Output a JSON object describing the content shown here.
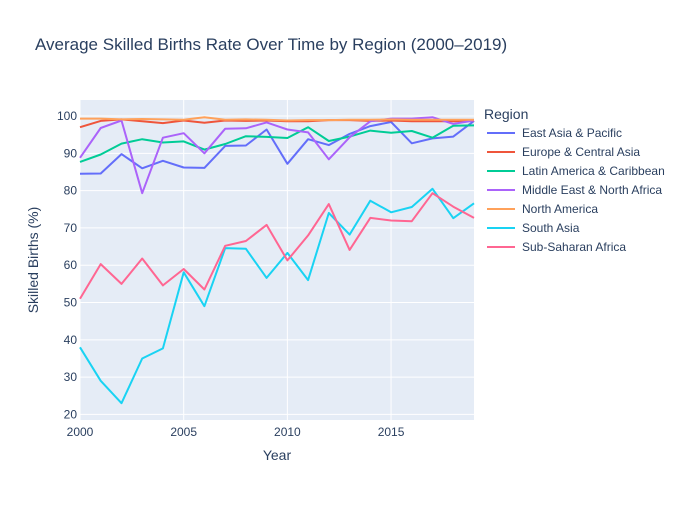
{
  "chart_data": {
    "type": "line",
    "title": "Average Skilled Births Rate Over Time by Region (2000–2019)",
    "xlabel": "Year",
    "ylabel": "Skilled Births (%)",
    "x": [
      2000,
      2001,
      2002,
      2003,
      2004,
      2005,
      2006,
      2007,
      2008,
      2009,
      2010,
      2011,
      2012,
      2013,
      2014,
      2015,
      2016,
      2017,
      2018,
      2019
    ],
    "xlim": [
      2000,
      2019
    ],
    "ylim": [
      18.5,
      104.3
    ],
    "xticks": [
      2000,
      2005,
      2010,
      2015
    ],
    "yticks": [
      20,
      30,
      40,
      50,
      60,
      70,
      80,
      90,
      100
    ],
    "grid": true,
    "legend": {
      "title": "Region",
      "placement": "right"
    },
    "colors": {
      "plot_background": "#e5ecf6",
      "grid": "#ffffff",
      "text": "#2a3f5f"
    },
    "series": [
      {
        "name": "East Asia & Pacific",
        "color": "#636efa",
        "values": [
          84.5,
          84.6,
          89.8,
          86.0,
          88.0,
          86.2,
          86.1,
          92.0,
          92.1,
          96.4,
          87.2,
          93.8,
          92.2,
          95.2,
          97.3,
          98.4,
          92.7,
          94.0,
          94.5,
          98.7
        ]
      },
      {
        "name": "Europe & Central Asia",
        "color": "#ef553b",
        "values": [
          97.0,
          98.7,
          99.1,
          98.6,
          98.1,
          98.8,
          98.2,
          98.8,
          98.7,
          98.8,
          98.6,
          98.6,
          98.9,
          98.9,
          98.7,
          98.8,
          98.6,
          98.6,
          98.6,
          98.7
        ]
      },
      {
        "name": "Latin America & Caribbean",
        "color": "#00cc96",
        "values": [
          87.7,
          89.7,
          92.6,
          93.8,
          92.9,
          93.2,
          91.0,
          92.5,
          94.6,
          94.4,
          94.1,
          97.0,
          93.3,
          94.5,
          96.1,
          95.5,
          96.0,
          94.2,
          97.4,
          97.5
        ]
      },
      {
        "name": "Middle East & North Africa",
        "color": "#ab63fa",
        "values": [
          88.8,
          96.8,
          98.8,
          79.3,
          94.2,
          95.4,
          90.0,
          96.6,
          96.7,
          98.3,
          96.4,
          95.6,
          88.4,
          94.3,
          98.6,
          99.3,
          99.3,
          99.7,
          97.9,
          98.8
        ]
      },
      {
        "name": "North America",
        "color": "#ffa15a",
        "values": [
          99.3,
          99.3,
          99.1,
          99.2,
          99.1,
          99.0,
          99.7,
          99.0,
          99.1,
          99.0,
          98.8,
          98.9,
          98.9,
          99.0,
          99.0,
          99.1,
          99.0,
          99.0,
          99.0,
          99.0
        ]
      },
      {
        "name": "South Asia",
        "color": "#19d3f3",
        "values": [
          38.0,
          29.0,
          23.0,
          35.0,
          37.7,
          58.1,
          49.0,
          64.6,
          64.4,
          56.6,
          63.3,
          56.0,
          74.0,
          68.2,
          77.3,
          74.2,
          75.6,
          80.5,
          72.6,
          76.6
        ]
      },
      {
        "name": "Sub-Saharan Africa",
        "color": "#ff6692",
        "values": [
          51.0,
          60.3,
          55.0,
          61.8,
          54.6,
          59.0,
          53.5,
          65.2,
          66.5,
          70.8,
          61.3,
          68.0,
          76.4,
          64.1,
          72.7,
          72.0,
          71.8,
          79.3,
          75.7,
          72.7
        ]
      }
    ]
  }
}
